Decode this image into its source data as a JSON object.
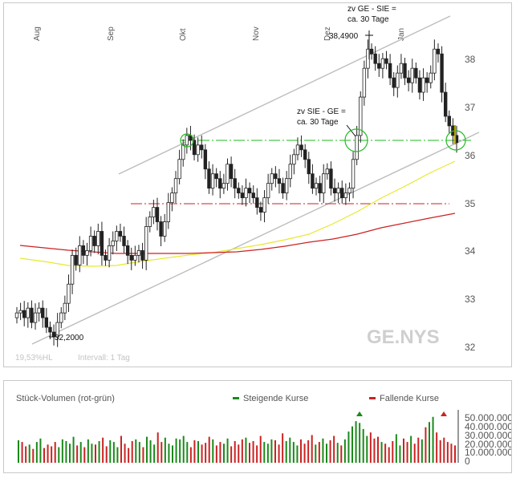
{
  "price_panel": {
    "months": [
      "Aug",
      "Sep",
      "Okt",
      "Nov",
      "Dez",
      "Jan"
    ],
    "y_ticks": [
      "38",
      "37",
      "36",
      "35",
      "34",
      "33",
      "32"
    ],
    "watermark": "GE.NYS",
    "footer_left": "19,53%HL",
    "footer_interval": "Intervall: 1 Tag",
    "label_high": "38,4900",
    "label_low": "32,2000",
    "annotation_top_line1": "zv GE - SIE =",
    "annotation_top_line2": "ca. 30 Tage",
    "annotation_mid_line1": "zv SIE - GE =",
    "annotation_mid_line2": "ca. 30 Tage"
  },
  "volume_panel": {
    "title": "Stück-Volumen (rot-grün)",
    "legend_up": "Steigende Kurse",
    "legend_down": "Fallende Kurse",
    "y_ticks": [
      "50.000.000",
      "40.000.000",
      "30.000.000",
      "20.000.000",
      "10.000.000",
      "0"
    ]
  },
  "colors": {
    "candle": "#222222",
    "channel": "#bdbdbd",
    "support": "#22bb22",
    "resistance": "#cc2222",
    "ma_short": "#e8e830",
    "ma_long": "#cc2222",
    "vol_up": "#1a8a1a",
    "vol_down": "#cc2222"
  },
  "chart_data": [
    {
      "type": "candlestick",
      "title": "GE.NYS",
      "x_labels": [
        "Aug",
        "Sep",
        "Okt",
        "Nov",
        "Dez",
        "Jan"
      ],
      "ylim": [
        32,
        38.7
      ],
      "y_ticks": [
        32,
        33,
        34,
        35,
        36,
        37,
        38
      ],
      "grid": false,
      "closes": [
        32.7,
        32.75,
        32.6,
        32.8,
        32.5,
        32.7,
        32.8,
        32.6,
        32.4,
        32.3,
        32.2,
        32.5,
        32.7,
        32.9,
        33.3,
        33.9,
        33.7,
        34.1,
        33.9,
        34,
        34.3,
        34.1,
        34.4,
        33.9,
        33.8,
        34.1,
        34.2,
        34.4,
        34.3,
        34.1,
        33.9,
        33.8,
        33.9,
        34.0,
        33.8,
        34.5,
        34.7,
        34.9,
        34.6,
        34.3,
        34.6,
        35,
        35.2,
        35.5,
        35.9,
        36.2,
        36.4,
        36.3,
        36,
        36.2,
        36.1,
        35.7,
        35.3,
        35.6,
        35.5,
        35.3,
        35.4,
        35.8,
        35.5,
        35.3,
        35.2,
        35.1,
        35.3,
        35.2,
        35.1,
        34.9,
        34.8,
        35.1,
        35.4,
        35.6,
        35.5,
        35.4,
        35.2,
        35.5,
        35.8,
        36.0,
        36.2,
        36.1,
        35.9,
        35.6,
        35.3,
        35.4,
        35.2,
        35.6,
        35.7,
        35.3,
        35.2,
        35.3,
        35.1,
        35.2,
        35.3,
        35.9,
        36.4,
        37.2,
        37.8,
        38.2,
        38.1,
        37.9,
        37.8,
        38.0,
        37.9,
        37.6,
        37.4,
        37.7,
        37.9,
        37.6,
        37.5,
        37.8,
        37.6,
        37.3,
        37.6,
        37.5,
        37.7,
        38.2,
        38.1,
        37.3,
        36.8,
        36.6,
        36.4,
        36.25
      ],
      "annotations": [
        "38,4900",
        "32,2000",
        "zv GE - SIE = ca. 30 Tage",
        "zv SIE - GE = ca. 30 Tage"
      ],
      "overlays": [
        {
          "kind": "horizontal",
          "value": 36.3,
          "color": "green"
        },
        {
          "kind": "horizontal",
          "value": 35.0,
          "color": "red"
        },
        {
          "kind": "channel_upper",
          "from": 35.7,
          "to": 38.9
        },
        {
          "kind": "channel_lower",
          "from": 32.0,
          "to": 36.5
        },
        {
          "kind": "moving_average",
          "color": "yellow",
          "values": [
            33.85,
            33.7,
            33.62,
            33.6,
            33.63,
            33.7,
            33.8,
            33.92,
            34.0,
            34.1,
            34.22,
            34.4,
            34.58,
            34.75,
            35.0,
            35.3,
            35.55,
            35.75,
            35.9
          ]
        },
        {
          "kind": "moving_average",
          "color": "red",
          "values": [
            34.1,
            34.05,
            34.0,
            33.97,
            33.95,
            33.94,
            33.93,
            33.93,
            33.95,
            33.98,
            34.03,
            34.1,
            34.18,
            34.25,
            34.35,
            34.48,
            34.58,
            34.68,
            34.75
          ]
        }
      ]
    },
    {
      "type": "bar",
      "title": "Stück-Volumen (rot-grün)",
      "ylim": [
        0,
        55000000
      ],
      "y_ticks": [
        0,
        10000000,
        20000000,
        30000000,
        40000000,
        50000000
      ],
      "legend": [
        "Steigende Kurse",
        "Fallende Kurse"
      ],
      "legend_position": "top",
      "values": [
        26,
        24,
        19,
        21,
        16,
        24,
        28,
        17,
        21,
        19,
        24,
        18,
        27,
        25,
        22,
        30,
        20,
        24,
        18,
        27,
        22,
        21,
        25,
        29,
        19,
        26,
        24,
        18,
        31,
        22,
        17,
        25,
        27,
        24,
        18,
        30,
        26,
        21,
        35,
        24,
        29,
        22,
        20,
        28,
        27,
        31,
        24,
        18,
        26,
        25,
        21,
        23,
        30,
        27,
        20,
        24,
        22,
        28,
        19,
        25,
        21,
        27,
        29,
        23,
        25,
        20,
        31,
        24,
        22,
        27,
        26,
        21,
        34,
        25,
        29,
        24,
        20,
        27,
        22,
        26,
        32,
        21,
        24,
        28,
        22,
        26,
        31,
        23,
        20,
        27,
        36,
        42,
        48,
        46,
        39,
        31,
        35,
        28,
        30,
        24,
        22,
        18,
        25,
        33,
        20,
        28,
        24,
        31,
        22,
        29,
        27,
        41,
        47,
        53,
        35,
        26,
        29,
        24,
        22,
        20
      ],
      "directions": [
        "u",
        "d",
        "d",
        "u",
        "d",
        "u",
        "u",
        "d",
        "d",
        "d",
        "d",
        "u",
        "u",
        "u",
        "u",
        "u",
        "d",
        "u",
        "d",
        "u",
        "u",
        "d",
        "u",
        "d",
        "d",
        "u",
        "u",
        "u",
        "d",
        "d",
        "d",
        "d",
        "u",
        "u",
        "d",
        "u",
        "u",
        "u",
        "d",
        "d",
        "u",
        "u",
        "u",
        "u",
        "u",
        "u",
        "u",
        "d",
        "d",
        "u",
        "d",
        "d",
        "d",
        "u",
        "d",
        "d",
        "u",
        "u",
        "d",
        "d",
        "d",
        "d",
        "u",
        "d",
        "d",
        "d",
        "d",
        "u",
        "u",
        "u",
        "d",
        "d",
        "d",
        "u",
        "u",
        "u",
        "u",
        "d",
        "d",
        "d",
        "d",
        "u",
        "d",
        "u",
        "u",
        "d",
        "d",
        "u",
        "d",
        "u",
        "u",
        "u",
        "u",
        "u",
        "u",
        "u",
        "d",
        "d",
        "d",
        "u",
        "d",
        "d",
        "d",
        "u",
        "u",
        "d",
        "d",
        "u",
        "d",
        "d",
        "u",
        "d",
        "u",
        "u",
        "d",
        "d",
        "d",
        "d",
        "d",
        "d"
      ],
      "unit_note": "values in millions of shares (read off axis)"
    }
  ]
}
